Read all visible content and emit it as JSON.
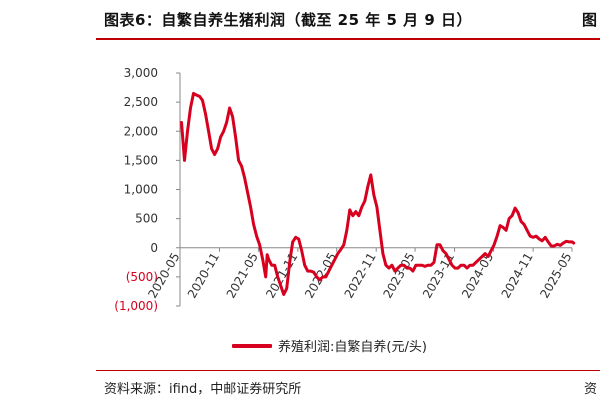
{
  "header": {
    "title": "图表6：自繁自养生猪利润（截至 25 年 5 月 9 日）",
    "next_title": "图"
  },
  "footer": {
    "source": "资料来源：ifind，中邮证券研究所",
    "next_source": "资"
  },
  "colors": {
    "accent": "#c00000",
    "series": "#d7001e",
    "negative_tick": "#d7001e"
  },
  "chart_data": {
    "type": "line",
    "title": "",
    "xlabel": "",
    "ylabel": "",
    "ylim": [
      -1000,
      3000
    ],
    "y_ticks": [
      {
        "value": 3000,
        "label": "3,000"
      },
      {
        "value": 2500,
        "label": "2,500"
      },
      {
        "value": 2000,
        "label": "2,000"
      },
      {
        "value": 1500,
        "label": "1,500"
      },
      {
        "value": 1000,
        "label": "1,000"
      },
      {
        "value": 500,
        "label": "500"
      },
      {
        "value": 0,
        "label": "0"
      },
      {
        "value": -500,
        "label": "(500)"
      },
      {
        "value": -1000,
        "label": "(1,000)"
      }
    ],
    "xlim": [
      "2020-05",
      "2025-05"
    ],
    "x_ticks": [
      "2020-05",
      "2020-11",
      "2021-05",
      "2021-11",
      "2022-05",
      "2022-11",
      "2023-05",
      "2023-11",
      "2024-05",
      "2024-11",
      "2025-05"
    ],
    "grid": false,
    "legend_position": "bottom",
    "series": [
      {
        "name": "养殖利润:自繁自养(元/头)",
        "points": [
          [
            "2020-05-08",
            2150
          ],
          [
            "2020-05-22",
            1500
          ],
          [
            "2020-06-05",
            2000
          ],
          [
            "2020-06-19",
            2400
          ],
          [
            "2020-07-03",
            2650
          ],
          [
            "2020-07-17",
            2620
          ],
          [
            "2020-07-31",
            2600
          ],
          [
            "2020-08-14",
            2530
          ],
          [
            "2020-08-28",
            2300
          ],
          [
            "2020-09-11",
            2000
          ],
          [
            "2020-09-25",
            1700
          ],
          [
            "2020-10-09",
            1600
          ],
          [
            "2020-10-23",
            1700
          ],
          [
            "2020-11-06",
            1900
          ],
          [
            "2020-11-20",
            2000
          ],
          [
            "2020-12-04",
            2150
          ],
          [
            "2020-12-18",
            2400
          ],
          [
            "2021-01-01",
            2250
          ],
          [
            "2021-01-15",
            1900
          ],
          [
            "2021-01-29",
            1500
          ],
          [
            "2021-02-12",
            1400
          ],
          [
            "2021-02-26",
            1200
          ],
          [
            "2021-03-12",
            950
          ],
          [
            "2021-03-26",
            700
          ],
          [
            "2021-04-09",
            400
          ],
          [
            "2021-04-23",
            200
          ],
          [
            "2021-05-07",
            50
          ],
          [
            "2021-05-21",
            -200
          ],
          [
            "2021-06-04",
            -500
          ],
          [
            "2021-06-11",
            -120
          ],
          [
            "2021-06-18",
            -200
          ],
          [
            "2021-07-02",
            -300
          ],
          [
            "2021-07-16",
            -300
          ],
          [
            "2021-07-30",
            -500
          ],
          [
            "2021-08-13",
            -650
          ],
          [
            "2021-08-27",
            -800
          ],
          [
            "2021-09-10",
            -700
          ],
          [
            "2021-09-24",
            -250
          ],
          [
            "2021-10-08",
            100
          ],
          [
            "2021-10-22",
            180
          ],
          [
            "2021-11-05",
            150
          ],
          [
            "2021-11-19",
            -50
          ],
          [
            "2021-12-03",
            -300
          ],
          [
            "2021-12-17",
            -400
          ],
          [
            "2021-12-31",
            -400
          ],
          [
            "2022-01-14",
            -420
          ],
          [
            "2022-01-28",
            -500
          ],
          [
            "2022-02-11",
            -550
          ],
          [
            "2022-02-25",
            -500
          ],
          [
            "2022-03-11",
            -500
          ],
          [
            "2022-03-25",
            -400
          ],
          [
            "2022-04-08",
            -300
          ],
          [
            "2022-04-22",
            -200
          ],
          [
            "2022-05-06",
            -100
          ],
          [
            "2022-05-20",
            -30
          ],
          [
            "2022-06-03",
            50
          ],
          [
            "2022-06-17",
            300
          ],
          [
            "2022-07-01",
            650
          ],
          [
            "2022-07-15",
            550
          ],
          [
            "2022-07-29",
            620
          ],
          [
            "2022-08-12",
            550
          ],
          [
            "2022-08-26",
            700
          ],
          [
            "2022-09-09",
            800
          ],
          [
            "2022-09-23",
            1050
          ],
          [
            "2022-10-07",
            1250
          ],
          [
            "2022-10-21",
            900
          ],
          [
            "2022-11-04",
            700
          ],
          [
            "2022-11-18",
            300
          ],
          [
            "2022-12-02",
            -100
          ],
          [
            "2022-12-16",
            -300
          ],
          [
            "2022-12-30",
            -350
          ],
          [
            "2023-01-13",
            -300
          ],
          [
            "2023-01-27",
            -400
          ],
          [
            "2023-02-10",
            -350
          ],
          [
            "2023-02-24",
            -300
          ],
          [
            "2023-03-10",
            -300
          ],
          [
            "2023-03-24",
            -350
          ],
          [
            "2023-04-07",
            -350
          ],
          [
            "2023-04-21",
            -400
          ],
          [
            "2023-05-05",
            -300
          ],
          [
            "2023-05-19",
            -300
          ],
          [
            "2023-06-02",
            -300
          ],
          [
            "2023-06-16",
            -320
          ],
          [
            "2023-06-30",
            -300
          ],
          [
            "2023-07-14",
            -300
          ],
          [
            "2023-07-28",
            -250
          ],
          [
            "2023-08-11",
            50
          ],
          [
            "2023-08-25",
            50
          ],
          [
            "2023-09-08",
            -50
          ],
          [
            "2023-09-22",
            -100
          ],
          [
            "2023-10-06",
            -200
          ],
          [
            "2023-10-20",
            -300
          ],
          [
            "2023-11-03",
            -350
          ],
          [
            "2023-11-17",
            -350
          ],
          [
            "2023-12-01",
            -300
          ],
          [
            "2023-12-15",
            -300
          ],
          [
            "2023-12-29",
            -350
          ],
          [
            "2024-01-12",
            -300
          ],
          [
            "2024-01-26",
            -300
          ],
          [
            "2024-02-09",
            -250
          ],
          [
            "2024-02-23",
            -200
          ],
          [
            "2024-03-08",
            -150
          ],
          [
            "2024-03-22",
            -100
          ],
          [
            "2024-04-05",
            -150
          ],
          [
            "2024-04-19",
            -50
          ],
          [
            "2024-05-03",
            50
          ],
          [
            "2024-05-17",
            200
          ],
          [
            "2024-05-31",
            380
          ],
          [
            "2024-06-14",
            350
          ],
          [
            "2024-06-28",
            300
          ],
          [
            "2024-07-12",
            500
          ],
          [
            "2024-07-26",
            550
          ],
          [
            "2024-08-09",
            680
          ],
          [
            "2024-08-23",
            600
          ],
          [
            "2024-09-06",
            450
          ],
          [
            "2024-09-20",
            400
          ],
          [
            "2024-10-04",
            300
          ],
          [
            "2024-10-18",
            200
          ],
          [
            "2024-11-01",
            180
          ],
          [
            "2024-11-15",
            200
          ],
          [
            "2024-11-29",
            150
          ],
          [
            "2024-12-13",
            120
          ],
          [
            "2024-12-27",
            180
          ],
          [
            "2025-01-10",
            100
          ],
          [
            "2025-01-24",
            30
          ],
          [
            "2025-02-07",
            30
          ],
          [
            "2025-02-21",
            60
          ],
          [
            "2025-03-07",
            40
          ],
          [
            "2025-03-21",
            80
          ],
          [
            "2025-04-04",
            110
          ],
          [
            "2025-04-18",
            100
          ],
          [
            "2025-05-02",
            100
          ],
          [
            "2025-05-09",
            80
          ]
        ]
      }
    ]
  }
}
